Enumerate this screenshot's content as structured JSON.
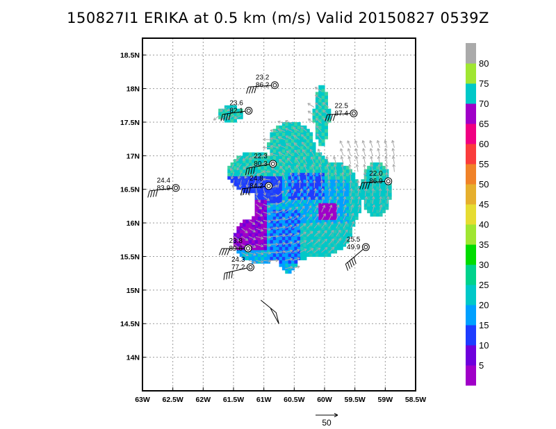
{
  "title": "150827I1 ERIKA at 0.5 km (m/s) Valid 20150827 0539Z",
  "map": {
    "lon_range": [
      -63.0,
      -58.5
    ],
    "lat_range": [
      13.5,
      18.75
    ],
    "lon_ticks": [
      "63W",
      "62.5W",
      "62W",
      "61.5W",
      "61W",
      "60.5W",
      "60W",
      "59.5W",
      "59W",
      "58.5W"
    ],
    "lat_ticks": [
      "14N",
      "14.5N",
      "15N",
      "15.5N",
      "16N",
      "16.5N",
      "17N",
      "17.5N",
      "18N",
      "18.5N"
    ],
    "grid": true,
    "gridline_color": "#999999"
  },
  "colorbar": {
    "labels": [
      "5",
      "10",
      "15",
      "20",
      "25",
      "30",
      "35",
      "40",
      "45",
      "50",
      "55",
      "60",
      "65",
      "70",
      "75",
      "80"
    ],
    "colors": [
      "#a000c8",
      "#6e00dc",
      "#1e3cff",
      "#00a0ff",
      "#00c8c8",
      "#00d28c",
      "#00dc00",
      "#a0e632",
      "#e6dc32",
      "#e6af2d",
      "#f08228",
      "#fa3c3c",
      "#f00082",
      "#a000c8",
      "#00c8c8",
      "#a0e632",
      "#aaaaaa"
    ]
  },
  "reference_vector": {
    "label": "50"
  },
  "observations": [
    {
      "speed": "23.2",
      "dir": "86.2",
      "lon": -60.82,
      "lat": 18.05
    },
    {
      "speed": "23.6",
      "dir": "82.1",
      "lon": -61.25,
      "lat": 17.67
    },
    {
      "speed": "22.5",
      "dir": "87.4",
      "lon": -59.52,
      "lat": 17.63
    },
    {
      "speed": "22.3",
      "dir": "80.3",
      "lon": -60.85,
      "lat": 16.88
    },
    {
      "speed": "24.4",
      "dir": "83.9",
      "lon": -62.45,
      "lat": 16.52
    },
    {
      "speed": "22.0",
      "dir": "86.9",
      "lon": -58.95,
      "lat": 16.62
    },
    {
      "speed": "24.8",
      "dir": "84.2",
      "lon": -60.92,
      "lat": 16.55
    },
    {
      "speed": "23.8",
      "dir": "89.6",
      "lon": -61.26,
      "lat": 15.62
    },
    {
      "speed": "25.5",
      "dir": "49.9",
      "lon": -59.32,
      "lat": 15.64
    },
    {
      "speed": "24.3",
      "dir": "77.2",
      "lon": -61.22,
      "lat": 15.34
    }
  ]
}
